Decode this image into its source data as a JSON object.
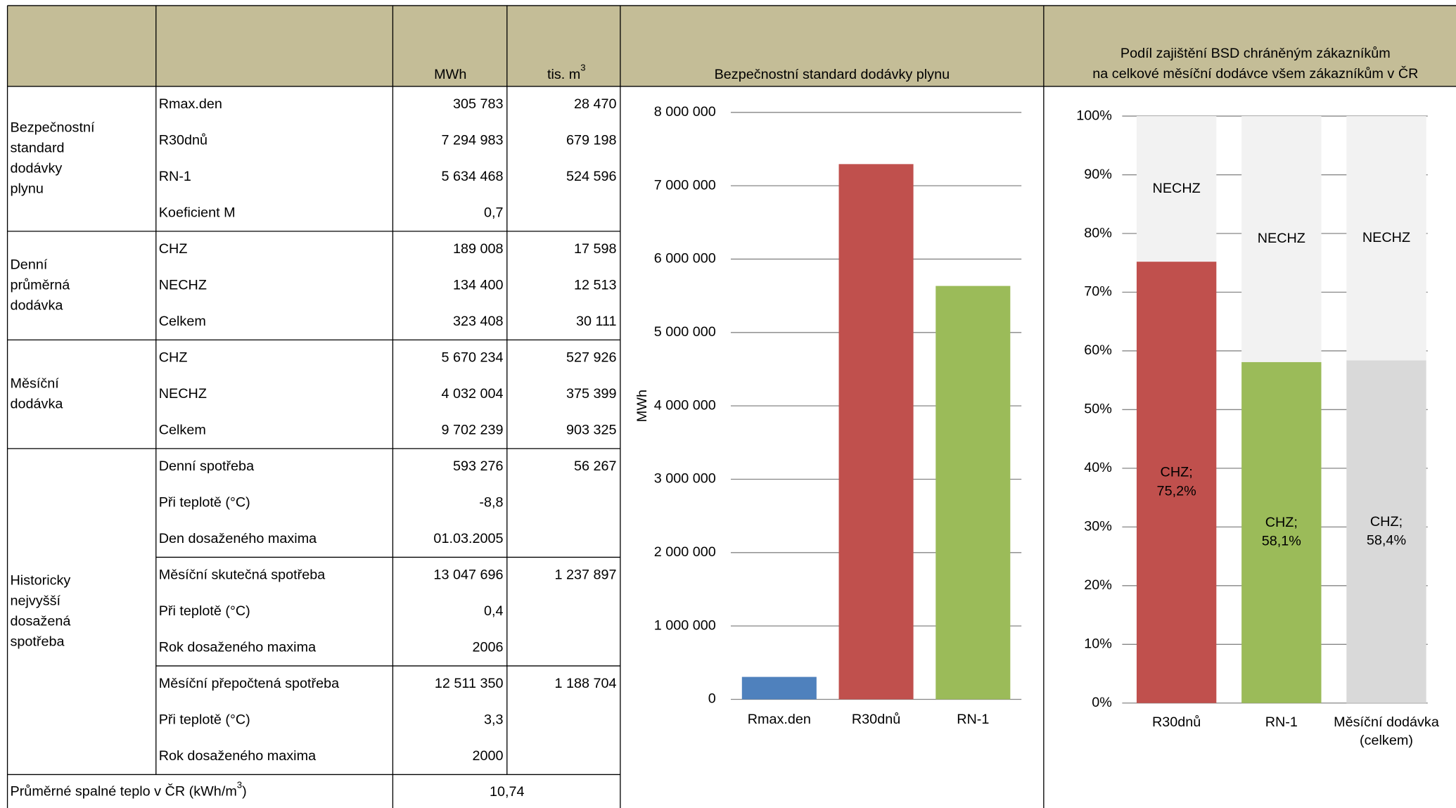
{
  "table": {
    "header": {
      "mwh": "MWh",
      "tis": "tis. m",
      "tis_sup": "3"
    },
    "groups": [
      {
        "label": [
          "Bezpečnostní",
          "standard",
          "dodávky",
          "plynu"
        ],
        "blocks": [
          [
            [
              "Rmax.den",
              "305 783",
              "28 470"
            ],
            [
              "R30dnů",
              "7 294 983",
              "679 198"
            ],
            [
              "RN-1",
              "5 634 468",
              "524 596"
            ],
            [
              "Koeficient M",
              "0,7",
              null
            ]
          ]
        ]
      },
      {
        "label": [
          "Denní",
          "průměrná",
          "dodávka"
        ],
        "blocks": [
          [
            [
              "CHZ",
              "189 008",
              "17 598"
            ],
            [
              "NECHZ",
              "134 400",
              "12 513"
            ],
            [
              "Celkem",
              "323 408",
              "30 111"
            ]
          ]
        ]
      },
      {
        "label": [
          "Měsíční",
          "dodávka"
        ],
        "blocks": [
          [
            [
              "CHZ",
              "5 670 234",
              "527 926"
            ],
            [
              "NECHZ",
              "4 032 004",
              "375 399"
            ],
            [
              "Celkem",
              "9 702 239",
              "903 325"
            ]
          ]
        ]
      },
      {
        "label": [
          "Historicky",
          "nejvyšší",
          "dosažená",
          "spotřeba"
        ],
        "blocks": [
          [
            [
              "Denní spotřeba",
              "593 276",
              "56 267"
            ],
            [
              "Při teplotě (°C)",
              "-8,8",
              null
            ],
            [
              "Den dosaženého maxima",
              "01.03.2005",
              null
            ]
          ],
          [
            [
              "Měsíční skutečná spotřeba",
              "13 047 696",
              "1 237 897"
            ],
            [
              "Při teplotě (°C)",
              "0,4",
              null
            ],
            [
              "Rok dosaženého maxima",
              "2006",
              null
            ]
          ],
          [
            [
              "Měsíční přepočtená spotřeba",
              "12 511 350",
              "1 188 704"
            ],
            [
              "Při teplotě (°C)",
              "3,3",
              null
            ],
            [
              "Rok dosaženého maxima",
              "2000",
              null
            ]
          ]
        ]
      }
    ],
    "footer": {
      "label": "Průměrné spalné teplo v ČR (kWh/m",
      "label_sup": "3",
      "label_end": ")",
      "value": "10,74"
    }
  },
  "chart_data": [
    {
      "type": "bar",
      "title": "Bezpečnostní standard dodávky plynu",
      "y_label": "MWh",
      "categories": [
        "Rmax.den",
        "R30dnů",
        "RN-1"
      ],
      "values": [
        305783,
        7294983,
        5634468
      ],
      "colors": [
        "#4f81bd",
        "#c0504d",
        "#9bbb59"
      ],
      "ylim": [
        0,
        8000000
      ],
      "yticks": [
        0,
        {
          "value": 1000000,
          "label": "1 000 000"
        },
        {
          "value": 2000000,
          "label": "2 000 000"
        },
        {
          "value": 3000000,
          "label": "3 000 000"
        },
        {
          "value": 4000000,
          "label": "4 000 000"
        },
        {
          "value": 5000000,
          "label": "5 000 000"
        },
        {
          "value": 6000000,
          "label": "6 000 000"
        },
        {
          "value": 7000000,
          "label": "7 000 000"
        },
        {
          "value": 8000000,
          "label": "8 000 000"
        }
      ],
      "grid": true
    },
    {
      "type": "stacked_bar",
      "title": [
        "Podíl zajištění BSD chráněným zákazníkům",
        "na celkové měsíční dodávce všem zákazníkům v ČR"
      ],
      "categories": [
        "R30dnů",
        "RN-1",
        "Měsíční dodávka (celkem)"
      ],
      "series": [
        {
          "name": "CHZ",
          "colors": [
            "#c0504d",
            "#9bbb59",
            "#d9d9d9"
          ],
          "values": [
            75.2,
            58.1,
            58.4
          ],
          "value_labels": [
            "75,2%",
            "58,1%",
            "58,4%"
          ]
        },
        {
          "name": "NECHZ",
          "color": "#f2f2f2",
          "values": [
            24.8,
            41.9,
            41.6
          ]
        }
      ],
      "label_separator": ";",
      "ylim": [
        0,
        100
      ],
      "yticks": [
        {
          "value": 0,
          "label": "0%"
        },
        {
          "value": 10,
          "label": "10%"
        },
        {
          "value": 20,
          "label": "20%"
        },
        {
          "value": 30,
          "label": "30%"
        },
        {
          "value": 40,
          "label": "40%"
        },
        {
          "value": 50,
          "label": "50%"
        },
        {
          "value": 60,
          "label": "60%"
        },
        {
          "value": 70,
          "label": "70%"
        },
        {
          "value": 80,
          "label": "80%"
        },
        {
          "value": 90,
          "label": "90%"
        },
        {
          "value": 100,
          "label": "100%"
        }
      ],
      "grid": true
    }
  ]
}
